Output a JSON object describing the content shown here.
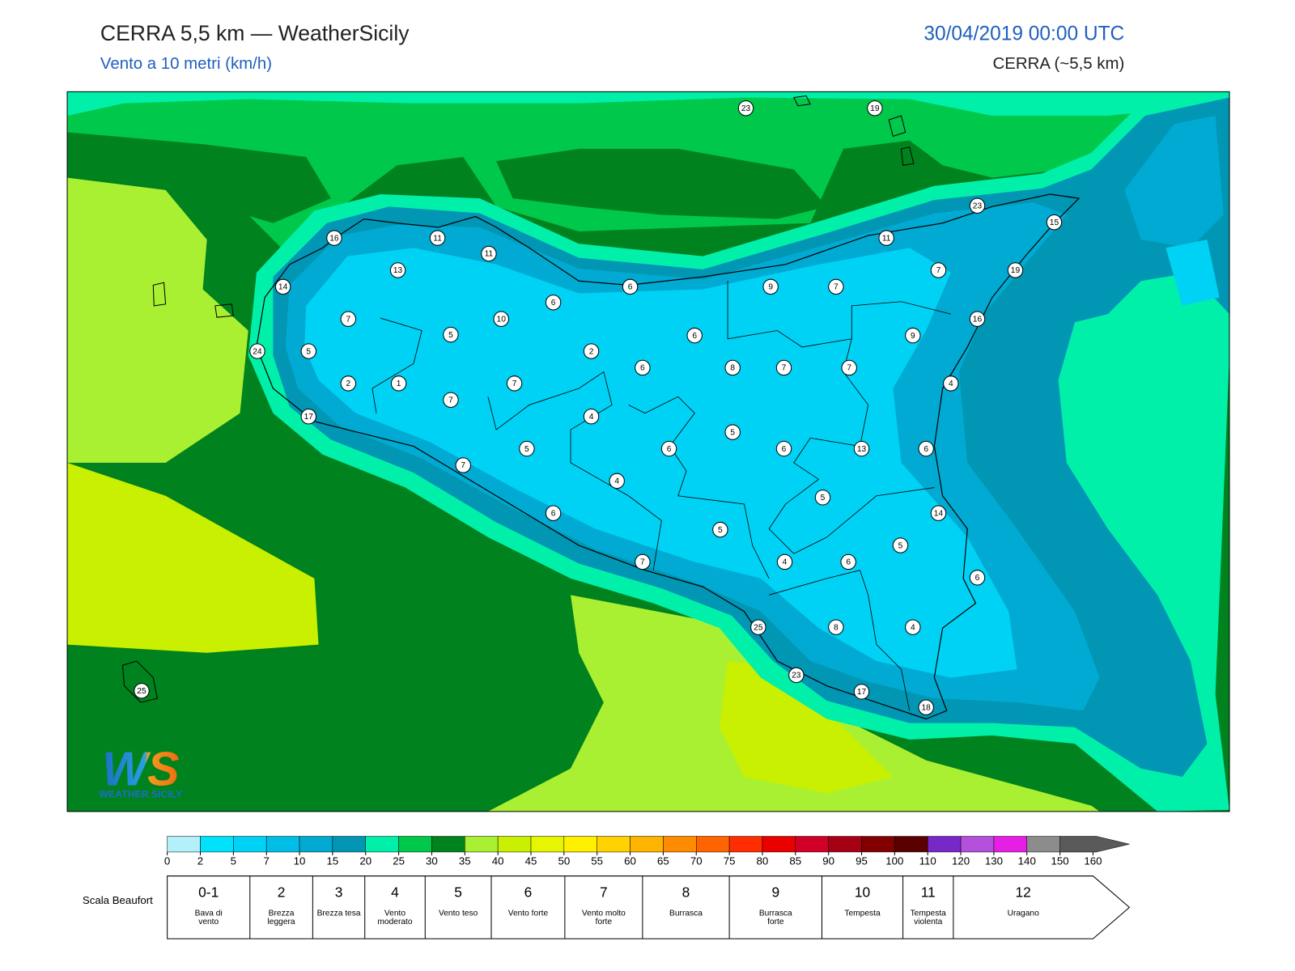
{
  "header": {
    "title": "CERRA 5,5 km — WeatherSicily",
    "subtitle": "Vento a 10 metri (km/h)",
    "datetime": "30/04/2019 00:00 UTC",
    "model": "CERRA (~5,5 km)"
  },
  "stations": [
    23,
    19,
    23,
    15,
    16,
    11,
    11,
    11,
    13,
    19,
    7,
    14,
    6,
    9,
    7,
    6,
    7,
    10,
    16,
    5,
    6,
    9,
    24,
    5,
    2,
    6,
    8,
    7,
    7,
    2,
    1,
    7,
    4,
    7,
    4,
    17,
    5,
    5,
    6,
    6,
    13,
    6,
    7,
    4,
    5,
    14,
    6,
    5,
    5,
    4,
    6,
    7,
    6,
    25,
    8,
    4,
    23,
    17,
    18,
    25
  ],
  "colorbar": {
    "ticks": [
      0,
      2,
      5,
      7,
      10,
      15,
      20,
      25,
      30,
      35,
      40,
      45,
      50,
      55,
      60,
      65,
      70,
      75,
      80,
      85,
      90,
      95,
      100,
      110,
      120,
      130,
      140,
      150,
      160
    ],
    "colors": [
      "#b4f0fa",
      "#00e1fa",
      "#00d2f5",
      "#00bee6",
      "#00aad2",
      "#0096b4",
      "#00f0aa",
      "#00c84b",
      "#00821e",
      "#aaf032",
      "#c8f000",
      "#e6f500",
      "#fff000",
      "#ffd200",
      "#ffb400",
      "#ff8c00",
      "#ff6400",
      "#ff2d00",
      "#eb0000",
      "#d20028",
      "#a50014",
      "#820000",
      "#5a0000",
      "#7828c8",
      "#b450dc",
      "#e61ee6",
      "#8c8c8c",
      "#5a5a5a",
      "#000000",
      "#7a4628",
      "#c88c50"
    ]
  },
  "beaufort": {
    "label": "Scala Beaufort",
    "levels": [
      {
        "number": "0-1",
        "name": "Bava di vento"
      },
      {
        "number": "2",
        "name": "Brezza leggera"
      },
      {
        "number": "3",
        "name": "Brezza tesa"
      },
      {
        "number": "4",
        "name": "Vento moderato"
      },
      {
        "number": "5",
        "name": "Vento teso"
      },
      {
        "number": "6",
        "name": "Vento forte"
      },
      {
        "number": "7",
        "name": "Vento molto forte"
      },
      {
        "number": "8",
        "name": "Burrasca"
      },
      {
        "number": "9",
        "name": "Burrasca forte"
      },
      {
        "number": "10",
        "name": "Tempesta"
      },
      {
        "number": "11",
        "name": "Tempesta violenta"
      },
      {
        "number": "12",
        "name": "Uragano"
      }
    ]
  },
  "logo": {
    "mark": "WS",
    "text": "WEATHER SICILY"
  }
}
